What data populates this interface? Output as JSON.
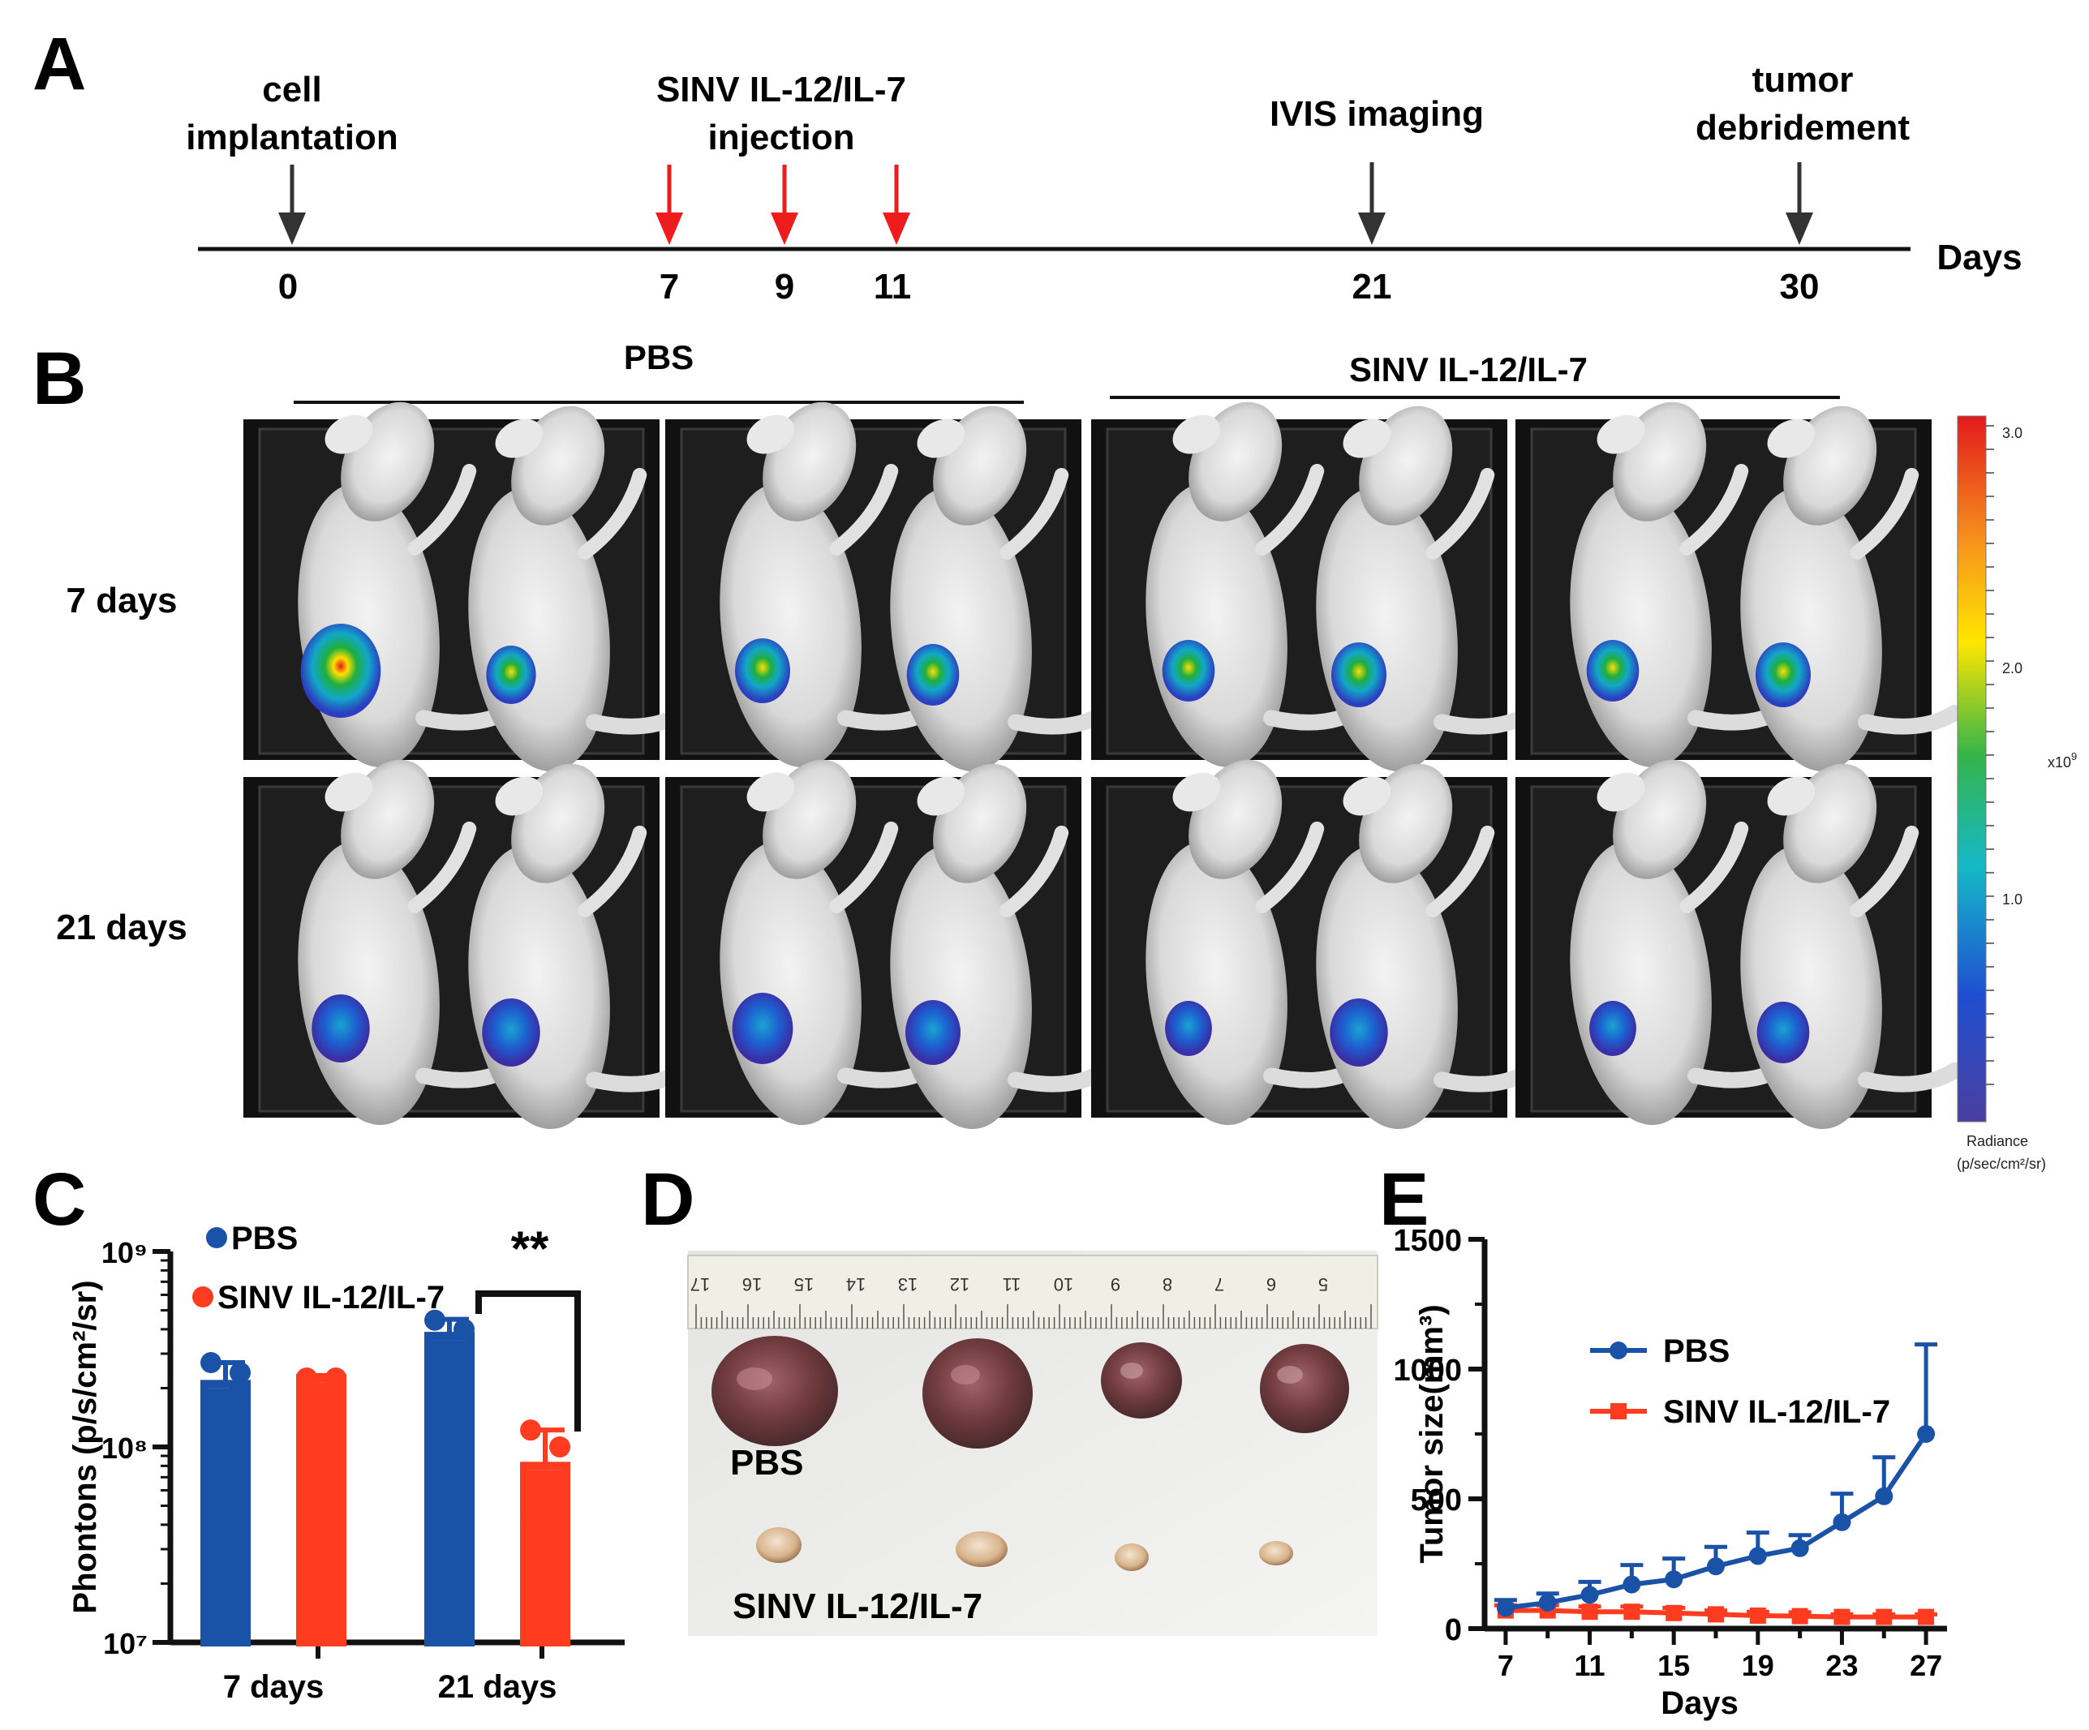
{
  "panels": {
    "A": "A",
    "B": "B",
    "C": "C",
    "D": "D",
    "E": "E"
  },
  "timeline": {
    "events": [
      {
        "id": "implant",
        "label_lines": [
          "cell",
          "implantation"
        ],
        "day": 0,
        "arrow": "black"
      },
      {
        "id": "sinv",
        "label_lines": [
          "SINV IL-12/IL-7",
          "injection"
        ],
        "days": [
          7,
          9,
          11
        ],
        "arrow": "red"
      },
      {
        "id": "ivis",
        "label_lines": [
          "IVIS imaging"
        ],
        "day": 21,
        "arrow": "black"
      },
      {
        "id": "debride",
        "label_lines": [
          "tumor",
          "debridement"
        ],
        "day": 30,
        "arrow": "black"
      }
    ],
    "ticks": [
      "0",
      "7",
      "9",
      "11",
      "21",
      "30"
    ],
    "axis_label": "Days"
  },
  "imaging": {
    "group_pbs": "PBS",
    "group_sinv": "SINV IL-12/IL-7",
    "row_7": "7 days",
    "row_21": "21 days",
    "colorbar": {
      "ticks": [
        "3.0",
        "2.0",
        "1.0"
      ],
      "tick_values": [
        3.0,
        2.0,
        1.0
      ],
      "scale_label": "x10",
      "scale_exp": "9",
      "title_line1": "Radiance",
      "title_line2": "(p/sec/cm²/sr)",
      "colors": [
        "#d7191c",
        "#fdae61",
        "#ffff00",
        "#1a9641",
        "#00bcd4",
        "#1f4fd1",
        "#4b3b9b"
      ]
    },
    "tumors": [
      [
        [
          0.9,
          0.35
        ],
        [
          0.45,
          0.4
        ],
        [
          0.4,
          0.45
        ],
        [
          0.4,
          0.45
        ]
      ],
      [
        [
          0.5,
          0.5
        ],
        [
          0.55,
          0.45
        ],
        [
          0.3,
          0.5
        ],
        [
          0.3,
          0.4
        ]
      ],
      [
        [
          0.25,
          0.3
        ],
        [
          0.2,
          0.3
        ],
        [
          0.2,
          0.35
        ],
        [
          0.15,
          0.25
        ]
      ],
      [
        [
          0.2,
          0.5
        ],
        [
          0.3,
          0.5
        ],
        [
          0.1,
          0.2
        ],
        [
          0.06,
          0.3
        ]
      ]
    ]
  },
  "chart_data": [
    {
      "panel": "C",
      "type": "bar",
      "yscale": "log",
      "ylabel": "Phontons (p/s/cm²/sr)",
      "y_ticks": [
        "10⁹",
        "10⁸",
        "10⁷"
      ],
      "ylim": [
        10000000,
        1000000000
      ],
      "categories": [
        "7 days",
        "21 days"
      ],
      "series": [
        {
          "name": "PBS",
          "color": "#1a52a8",
          "values": [
            210000000,
            370000000
          ],
          "err_hi": [
            270000000,
            450000000
          ],
          "points": [
            [
              270000000,
              240000000,
              150000000,
              195000000
            ],
            [
              445000000,
              400000000,
              180000000,
              300000000
            ]
          ]
        },
        {
          "name": "SINV IL-12/IL-7",
          "color": "#ff3b20",
          "values": [
            225000000,
            80000000
          ],
          "err_hi": [
            232000000,
            122000000
          ],
          "points": [
            [
              225000000,
              225000000,
              225000000,
              225000000
            ],
            [
              122000000,
              100000000,
              40000000,
              17000000
            ]
          ]
        }
      ],
      "significance": "**"
    },
    {
      "panel": "E",
      "type": "line",
      "title": "",
      "xlabel": "Days",
      "ylabel": "Tumor size(mm³)",
      "x_ticks": [
        "7",
        "11",
        "15",
        "19",
        "23",
        "27"
      ],
      "y_ticks": [
        "1500",
        "1000",
        "500",
        "0"
      ],
      "xlim": [
        6,
        28
      ],
      "ylim": [
        0,
        1500
      ],
      "x": [
        7,
        9,
        11,
        13,
        15,
        17,
        19,
        21,
        23,
        25,
        27
      ],
      "series": [
        {
          "name": "PBS",
          "color": "#1a52a8",
          "marker": "circle",
          "values": [
            80,
            100,
            130,
            170,
            190,
            240,
            280,
            310,
            410,
            510,
            750
          ],
          "err": [
            30,
            35,
            50,
            75,
            80,
            75,
            90,
            50,
            110,
            150,
            345
          ]
        },
        {
          "name": "SINV IL-12/IL-7",
          "color": "#ff3b20",
          "marker": "square",
          "values": [
            70,
            70,
            65,
            65,
            60,
            55,
            50,
            48,
            45,
            45,
            45
          ],
          "err": [
            20,
            20,
            20,
            20,
            20,
            15,
            15,
            15,
            10,
            10,
            10
          ]
        }
      ]
    }
  ],
  "photo": {
    "ruler_marks": [
      "17",
      "16",
      "15",
      "14",
      "13",
      "12",
      "11",
      "10",
      "9",
      "8",
      "7",
      "6",
      "5"
    ],
    "label_pbs": "PBS",
    "label_sinv": "SINV IL-12/IL-7"
  }
}
